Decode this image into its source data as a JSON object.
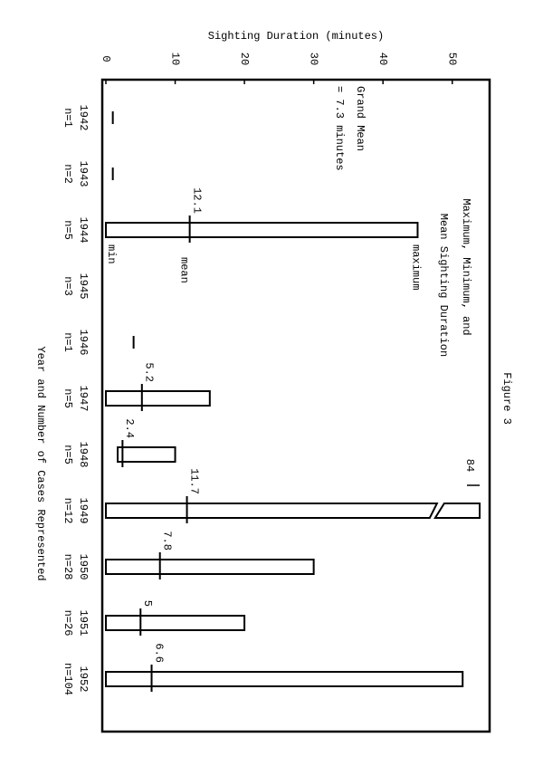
{
  "chart_data": {
    "type": "range-bar",
    "orientation": "horizontal",
    "figure_label": "Figure 3",
    "title": [
      "Maximum, Minimum, and",
      "Mean Sighting Duration"
    ],
    "value_axis_label": "Sighting Duration (minutes)",
    "category_axis_label": "Year and Number of Cases Represented",
    "categories": [
      "1942",
      "1943",
      "1944",
      "1945",
      "1946",
      "1947",
      "1948",
      "1949",
      "1950",
      "1951",
      "1952"
    ],
    "case_counts": [
      "n=1",
      "n=2",
      "n=5",
      "n=3",
      "n=1",
      "n=5",
      "n=5",
      "n=12",
      "n=28",
      "n=26",
      "n=104"
    ],
    "series": [
      {
        "name": "min",
        "values": [
          1,
          1,
          0,
          null,
          4,
          0,
          1.7,
          0,
          0,
          0,
          0
        ]
      },
      {
        "name": "maximum",
        "values": [
          1,
          1,
          45,
          null,
          4,
          15,
          10,
          84,
          30,
          20,
          51.5
        ]
      },
      {
        "name": "mean",
        "values": [
          null,
          null,
          12.1,
          null,
          null,
          5.2,
          2.4,
          11.7,
          7.8,
          5,
          6.6
        ]
      }
    ],
    "annotation": [
      "Grand Mean",
      "= 7.3 minutes"
    ],
    "ylim": [
      0,
      55
    ],
    "yticks": [
      0,
      10,
      20,
      30,
      40,
      50
    ],
    "color": "#000000"
  }
}
